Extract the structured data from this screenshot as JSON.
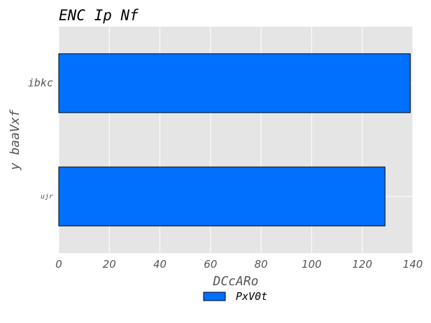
{
  "chart_data": {
    "type": "bar",
    "orientation": "horizontal",
    "title": "ENC Ip   Nf",
    "xlabel": "DCcARo",
    "ylabel": "y baaVxf",
    "categories": [
      "ujr",
      "ibkc"
    ],
    "series": [
      {
        "name": "PxV0t",
        "values": [
          129,
          139
        ],
        "color": "#0070ff"
      }
    ],
    "xlim": [
      0,
      140
    ],
    "xticks": [
      0,
      20,
      40,
      60,
      80,
      100,
      120,
      140
    ],
    "grid": true,
    "legend_position": "bottom-center",
    "background_color": "#e5e5e5",
    "grid_color": "#ffffff",
    "edge_color": "#000000"
  }
}
